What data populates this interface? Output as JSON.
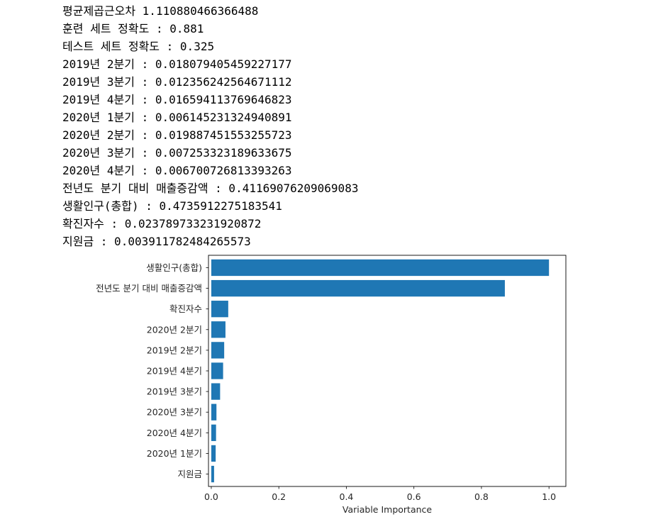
{
  "output_lines": [
    "평균제곱근오차 1.110880466366488",
    "훈련 세트 정확도 : 0.881",
    "테스트 세트 정확도 : 0.325",
    "2019년 2분기 : 0.018079405459227177",
    "2019년 3분기 : 0.012356242564671112",
    "2019년 4분기 : 0.016594113769646823",
    "2020년 1분기 : 0.006145231324940891",
    "2020년 2분기 : 0.019887451553255723",
    "2020년 3분기 : 0.007253323189633675",
    "2020년 4분기 : 0.006700726813393263",
    "전년도 분기 대비 매출증감액 : 0.41169076209069083",
    "생활인구(총합) : 0.4735912275183541",
    "확진자수 : 0.023789733231920872",
    "지원금 : 0.003911782484265573"
  ],
  "chart_data": {
    "type": "bar",
    "orientation": "horizontal",
    "categories": [
      "생활인구(총합)",
      "전년도 분기 대비 매출증감액",
      "확진자수",
      "2020년 2분기",
      "2019년 2분기",
      "2019년 4분기",
      "2019년 3분기",
      "2020년 3분기",
      "2020년 4분기",
      "2020년 1분기",
      "지원금"
    ],
    "values": [
      1.0,
      0.8693,
      0.0502,
      0.042,
      0.0382,
      0.035,
      0.0261,
      0.0153,
      0.0141,
      0.013,
      0.0083
    ],
    "xlabel": "Variable Importance",
    "ylabel": "",
    "title": "",
    "xlim": [
      -0.0083,
      1.05
    ],
    "xticks": [
      0.0,
      0.2,
      0.4,
      0.6,
      0.8,
      1.0
    ],
    "xtick_labels": [
      "0.0",
      "0.2",
      "0.4",
      "0.6",
      "0.8",
      "1.0"
    ],
    "bar_color": "#1f77b4",
    "grid": false
  }
}
